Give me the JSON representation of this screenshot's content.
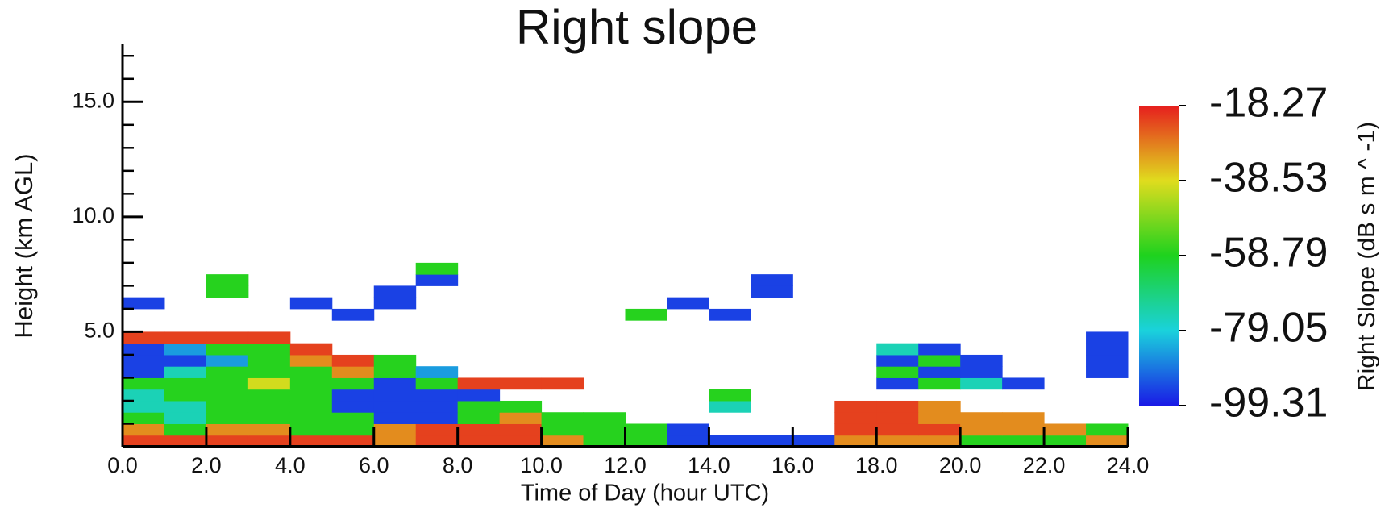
{
  "chart_data": {
    "type": "heatmap",
    "title": "Right slope",
    "xlabel": "Time of Day (hour UTC)",
    "ylabel": "Height (km AGL)",
    "xlim": [
      0,
      24
    ],
    "ylim": [
      0,
      17.5
    ],
    "xticks": [
      {
        "value": 0,
        "label": "0.0"
      },
      {
        "value": 2,
        "label": "2.0"
      },
      {
        "value": 4,
        "label": "4.0"
      },
      {
        "value": 6,
        "label": "6.0"
      },
      {
        "value": 8,
        "label": "8.0"
      },
      {
        "value": 10,
        "label": "10.0"
      },
      {
        "value": 12,
        "label": "12.0"
      },
      {
        "value": 14,
        "label": "14.0"
      },
      {
        "value": 16,
        "label": "16.0"
      },
      {
        "value": 18,
        "label": "18.0"
      },
      {
        "value": 20,
        "label": "20.0"
      },
      {
        "value": 22,
        "label": "22.0"
      },
      {
        "value": 24,
        "label": "24.0"
      }
    ],
    "yticks": [
      {
        "value": 5,
        "label": "5.0"
      },
      {
        "value": 10,
        "label": "10.0"
      },
      {
        "value": 15,
        "label": "15.0"
      }
    ],
    "yminorticks": [
      1,
      2,
      3,
      4,
      6,
      7,
      8,
      9,
      11,
      12,
      13,
      14,
      16,
      17
    ],
    "x": [
      0.5,
      1.5,
      2.5,
      3.5,
      4.5,
      5.5,
      6.5,
      7.5,
      8.5,
      9.5,
      10.5,
      11.5,
      12.5,
      13.5,
      14.5,
      15.5,
      16.5,
      17.5,
      18.5,
      19.5,
      20.5,
      21.5,
      22.5,
      23.5
    ],
    "y": [
      0.25,
      0.75,
      1.25,
      1.75,
      2.25,
      2.75,
      3.25,
      3.75,
      4.25,
      4.75,
      5.25,
      5.75,
      6.25,
      6.75,
      7.25,
      7.75
    ],
    "z": [
      [
        -22,
        -22,
        -22,
        -22,
        -22,
        -22,
        -30,
        -22,
        -22,
        -22,
        -30,
        -58,
        -58,
        -95,
        -95,
        -95,
        -95,
        -30,
        -30,
        -30,
        -58,
        -58,
        -58,
        -30
      ],
      [
        -30,
        -58,
        -30,
        -30,
        -58,
        -58,
        -30,
        -22,
        -22,
        -22,
        -58,
        -58,
        -58,
        -95,
        null,
        null,
        null,
        -22,
        -22,
        -22,
        -30,
        -30,
        -30,
        -58
      ],
      [
        -58,
        -75,
        -58,
        -58,
        -58,
        -58,
        -95,
        -95,
        -58,
        -30,
        -58,
        -58,
        null,
        null,
        null,
        null,
        null,
        -22,
        -22,
        -30,
        -30,
        -30,
        null,
        null
      ],
      [
        -75,
        -75,
        -58,
        -58,
        -58,
        -95,
        -95,
        -95,
        -58,
        -58,
        null,
        null,
        null,
        null,
        -75,
        null,
        null,
        -22,
        -22,
        -30,
        null,
        null,
        null,
        null
      ],
      [
        -75,
        -58,
        -58,
        -58,
        -58,
        -95,
        -95,
        -95,
        -95,
        null,
        null,
        null,
        null,
        null,
        -58,
        null,
        null,
        null,
        null,
        null,
        null,
        null,
        null,
        null
      ],
      [
        -58,
        -58,
        -58,
        -40,
        -58,
        -58,
        -95,
        -58,
        -22,
        -22,
        -22,
        null,
        null,
        null,
        null,
        null,
        null,
        null,
        -95,
        -58,
        -75,
        -95,
        null,
        null
      ],
      [
        -95,
        -75,
        -58,
        -58,
        -58,
        -30,
        -58,
        -85,
        null,
        null,
        null,
        null,
        null,
        null,
        null,
        null,
        null,
        null,
        -58,
        -95,
        -95,
        null,
        null,
        -95
      ],
      [
        -95,
        -95,
        -85,
        -58,
        -30,
        -22,
        -58,
        null,
        null,
        null,
        null,
        null,
        null,
        null,
        null,
        null,
        null,
        null,
        -95,
        -58,
        -95,
        null,
        null,
        -95
      ],
      [
        -95,
        -85,
        -58,
        -58,
        -22,
        null,
        null,
        null,
        null,
        null,
        null,
        null,
        null,
        null,
        null,
        null,
        null,
        null,
        -75,
        -95,
        null,
        null,
        null,
        -95
      ],
      [
        -22,
        -22,
        -22,
        -22,
        null,
        null,
        null,
        null,
        null,
        null,
        null,
        null,
        null,
        null,
        null,
        null,
        null,
        null,
        null,
        null,
        null,
        null,
        null,
        -95
      ],
      [
        null,
        null,
        null,
        null,
        null,
        null,
        null,
        null,
        null,
        null,
        null,
        null,
        null,
        null,
        null,
        null,
        null,
        null,
        null,
        null,
        null,
        null,
        null,
        null
      ],
      [
        null,
        null,
        null,
        null,
        null,
        -95,
        null,
        null,
        null,
        null,
        null,
        null,
        -58,
        null,
        -95,
        null,
        null,
        null,
        null,
        null,
        null,
        null,
        null,
        null
      ],
      [
        -95,
        null,
        null,
        null,
        -95,
        null,
        -95,
        null,
        null,
        null,
        null,
        null,
        null,
        -95,
        null,
        null,
        null,
        null,
        null,
        null,
        null,
        null,
        null,
        null
      ],
      [
        null,
        null,
        -58,
        null,
        null,
        null,
        -95,
        null,
        null,
        null,
        null,
        null,
        null,
        null,
        null,
        -95,
        null,
        null,
        null,
        null,
        null,
        null,
        null,
        null
      ],
      [
        null,
        null,
        -58,
        null,
        null,
        null,
        null,
        -95,
        null,
        null,
        null,
        null,
        null,
        null,
        null,
        -95,
        null,
        null,
        null,
        null,
        null,
        null,
        null,
        null
      ],
      [
        null,
        null,
        null,
        null,
        null,
        null,
        null,
        -58,
        null,
        null,
        null,
        null,
        null,
        null,
        null,
        null,
        null,
        null,
        null,
        null,
        null,
        null,
        null,
        null
      ]
    ],
    "colormap": [
      "#1a1ae6",
      "#1ad2dc",
      "#1ed21e",
      "#e0dc1e",
      "#e61e1e"
    ],
    "colorbar": {
      "label": "Right Slope (dB s m ^ -1)",
      "lim": [
        -99.31,
        -18.27
      ],
      "ticks": [
        -18.27,
        -38.53,
        -58.79,
        -79.05,
        -99.31
      ]
    }
  }
}
